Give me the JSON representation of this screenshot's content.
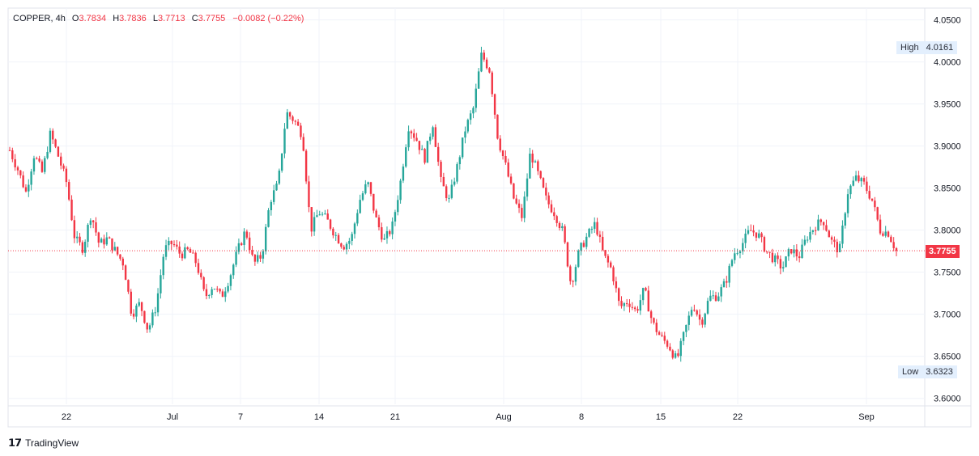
{
  "header": {
    "symbol": "COPPER",
    "interval": "4h",
    "open_label": "O",
    "open": "3.7834",
    "high_label": "H",
    "high": "3.7836",
    "low_label": "L",
    "low": "3.7713",
    "close_label": "C",
    "close": "3.7755",
    "change": "−0.0082 (−0.22%)"
  },
  "markers": {
    "high_label": "High",
    "high_value": "4.0161",
    "low_label": "Low",
    "low_value": "3.6323",
    "last_price": "3.7755"
  },
  "branding": {
    "name": "TradingView",
    "icon": "tradingview-logo-icon"
  },
  "colors": {
    "up": "#26a69a",
    "down": "#f23645",
    "grid": "#f0f3fa",
    "axis_text": "#131722"
  },
  "chart_data": {
    "type": "candlestick",
    "title": "",
    "y_ticks": [
      "4.0500",
      "4.0000",
      "3.9500",
      "3.9000",
      "3.8500",
      "3.8000",
      "3.7500",
      "3.7000",
      "3.6500",
      "3.6000"
    ],
    "ylim": [
      3.593,
      4.064
    ],
    "x_ticks": [
      "22",
      "Jul",
      "7",
      "14",
      "21",
      "Aug",
      "8",
      "15",
      "22",
      "Sep"
    ],
    "grid": true,
    "key_points": [
      3.895,
      3.872,
      3.845,
      3.89,
      3.868,
      3.915,
      3.887,
      3.856,
      3.79,
      3.778,
      3.82,
      3.783,
      3.79,
      3.775,
      3.76,
      3.7,
      3.713,
      3.681,
      3.71,
      3.777,
      3.785,
      3.771,
      3.776,
      3.76,
      3.72,
      3.735,
      3.72,
      3.743,
      3.775,
      3.8,
      3.76,
      3.77,
      3.835,
      3.855,
      3.94,
      3.93,
      3.913,
      3.8,
      3.822,
      3.812,
      3.795,
      3.781,
      3.79,
      3.835,
      3.857,
      3.814,
      3.787,
      3.803,
      3.855,
      3.924,
      3.908,
      3.885,
      3.928,
      3.858,
      3.835,
      3.875,
      3.92,
      3.945,
      4.009,
      3.99,
      3.91,
      3.875,
      3.836,
      3.815,
      3.893,
      3.865,
      3.835,
      3.82,
      3.798,
      3.735,
      3.775,
      3.793,
      3.808,
      3.77,
      3.753,
      3.708,
      3.716,
      3.703,
      3.73,
      3.69,
      3.673,
      3.663,
      3.645,
      3.68,
      3.713,
      3.689,
      3.72,
      3.722,
      3.738,
      3.772,
      3.783,
      3.8,
      3.795,
      3.775,
      3.765,
      3.755,
      3.778,
      3.768,
      3.792,
      3.805,
      3.812,
      3.787,
      3.775,
      3.845,
      3.862,
      3.855,
      3.836,
      3.8,
      3.797,
      3.775
    ],
    "last": 3.7755
  }
}
